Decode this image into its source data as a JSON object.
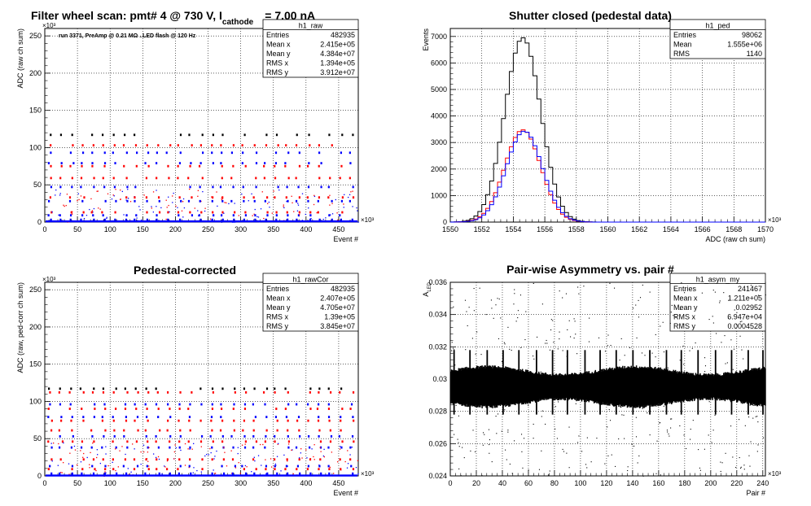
{
  "header": {
    "text": "Filter wheel scan: pmt#   4 @   730 V, I",
    "subscript": "cathode",
    "suffix": "= 7.00 nA"
  },
  "chart_data": [
    {
      "type": "scatter",
      "title": "",
      "annotation": "run 3371, PreAmp @ 0.21 MΩ ..LED flash @  120 Hz",
      "xlabel": "Event #",
      "ylabel": "ADC (raw ch sum)",
      "x_multiplier": "×10³",
      "y_multiplier": "×10³",
      "xlim": [
        0,
        480
      ],
      "ylim": [
        0,
        260
      ],
      "x_ticks": [
        0,
        50,
        100,
        150,
        200,
        250,
        300,
        350,
        400,
        450
      ],
      "y_ticks": [
        0,
        50,
        100,
        150,
        200,
        250
      ],
      "grid": true,
      "stats": {
        "name": "h1_raw",
        "rows": [
          [
            "Entries",
            "482935"
          ],
          [
            "Mean x",
            "2.415e+05"
          ],
          [
            "Mean y",
            "4.384e+07"
          ],
          [
            "RMS x",
            "1.394e+05"
          ],
          [
            "RMS y",
            "3.912e+07"
          ]
        ]
      },
      "pattern": {
        "step_x": 16.5,
        "x_start": 8,
        "levels": [
          [
            117,
            "#000000"
          ],
          [
            103,
            "#ff0000"
          ],
          [
            93,
            "#0000ff"
          ],
          [
            79,
            "#0000ff"
          ],
          [
            75,
            "#ff0000"
          ],
          [
            59,
            "#ff0000"
          ],
          [
            47,
            "#0000ff"
          ],
          [
            33,
            "#ff0000"
          ],
          [
            28,
            "#0000ff"
          ],
          [
            13,
            "#ff0000"
          ],
          [
            9,
            "#0000ff"
          ],
          [
            3,
            "#0000ff"
          ],
          [
            1,
            "#000000"
          ]
        ],
        "baseline": [
          1,
          1.8
        ]
      },
      "colors": {
        "series_red": "#ff0000",
        "series_blue": "#0000ff",
        "series_black": "#000000"
      }
    },
    {
      "type": "line",
      "title": "Shutter closed (pedestal data)",
      "xlabel": "ADC (raw ch sum)",
      "ylabel": "Events",
      "x_multiplier": "×10³",
      "xlim": [
        1550,
        1570
      ],
      "ylim": [
        0,
        7300
      ],
      "x_ticks": [
        1550,
        1552,
        1554,
        1556,
        1558,
        1560,
        1562,
        1564,
        1566,
        1568,
        1570
      ],
      "y_ticks": [
        0,
        1000,
        2000,
        3000,
        4000,
        5000,
        6000,
        7000
      ],
      "grid": true,
      "stats": {
        "name": "h1_ped",
        "rows": [
          [
            "Entries",
            "98062"
          ],
          [
            "Mean",
            "1.555e+06"
          ],
          [
            "RMS",
            "1140"
          ]
        ]
      },
      "series": [
        {
          "color": "#000000",
          "mean": 1554.6,
          "sigma": 1.14,
          "peak": 6950
        },
        {
          "color": "#ff0000",
          "mean": 1554.6,
          "sigma": 1.14,
          "peak": 3480
        },
        {
          "color": "#0000ff",
          "mean": 1554.7,
          "sigma": 1.14,
          "peak": 3430
        }
      ]
    },
    {
      "type": "scatter",
      "title": "Pedestal-corrected",
      "xlabel": "Event #",
      "ylabel": "ADC (raw, ped-corr ch sum)",
      "x_multiplier": "×10³",
      "y_multiplier": "×10³",
      "xlim": [
        0,
        480
      ],
      "ylim": [
        0,
        260
      ],
      "x_ticks": [
        0,
        50,
        100,
        150,
        200,
        250,
        300,
        350,
        400,
        450
      ],
      "y_ticks": [
        0,
        50,
        100,
        150,
        200,
        250
      ],
      "grid": true,
      "stats": {
        "name": "h1_rawCor",
        "rows": [
          [
            "Entries",
            "482935"
          ],
          [
            "Mean x",
            "2.407e+05"
          ],
          [
            "Mean y",
            "4.705e+07"
          ],
          [
            "RMS x",
            "1.39e+05"
          ],
          [
            "RMS y",
            "3.845e+07"
          ]
        ]
      },
      "pattern": {
        "step_x": 16.5,
        "x_start": 8,
        "levels": [
          [
            117,
            "#000000"
          ],
          [
            112,
            "#ff0000"
          ],
          [
            96,
            "#0000ff"
          ],
          [
            90,
            "#ff0000"
          ],
          [
            79,
            "#0000ff"
          ],
          [
            74,
            "#ff0000"
          ],
          [
            61,
            "#ff0000"
          ],
          [
            53,
            "#0000ff"
          ],
          [
            46,
            "#ff0000"
          ],
          [
            38,
            "#0000ff"
          ],
          [
            22,
            "#ff0000"
          ],
          [
            13,
            "#0000ff"
          ],
          [
            9,
            "#ff0000"
          ],
          [
            3,
            "#0000ff"
          ]
        ],
        "baseline": [
          0.5,
          1.2
        ]
      }
    },
    {
      "type": "scatter",
      "title": "Pair-wise Asymmetry vs. pair #",
      "xlabel": "Pair #",
      "ylabel": "A",
      "ylabel_sub": "LED",
      "x_multiplier": "×10³",
      "xlim": [
        0,
        242
      ],
      "ylim": [
        0.024,
        0.036
      ],
      "x_ticks": [
        0,
        20,
        40,
        60,
        80,
        100,
        120,
        140,
        160,
        180,
        200,
        220,
        240
      ],
      "y_ticks": [
        0.024,
        0.026,
        0.028,
        0.03,
        0.032,
        0.034,
        0.036
      ],
      "grid": true,
      "stats": {
        "name": "h1_asym_my",
        "rows": [
          [
            "Entries",
            "241467"
          ],
          [
            "Mean x",
            "1.211e+05"
          ],
          [
            "Mean y",
            "0.02952"
          ],
          [
            "RMS x",
            "6.947e+04"
          ],
          [
            "RMS y",
            "0.0004528"
          ]
        ]
      },
      "band": {
        "center": 0.02952,
        "width": 0.00045,
        "spike_step": 12.5,
        "spike_start": 3
      }
    }
  ]
}
